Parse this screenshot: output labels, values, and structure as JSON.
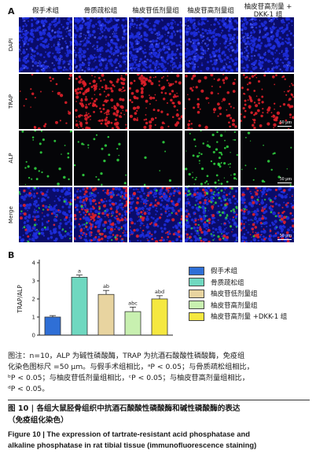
{
  "panel_a_label": "A",
  "panel_b_label": "B",
  "columns": [
    "假手术组",
    "骨质疏松组",
    "柚皮苷低剂量组",
    "柚皮苷高剂量组",
    "柚皮苷高剂量 +\nDKK-1 组"
  ],
  "column_1": "假手术组",
  "column_2": "骨质疏松组",
  "column_3": "柚皮苷低剂量组",
  "column_4": "柚皮苷高剂量组",
  "column_5a": "柚皮苷高剂量 +",
  "column_5b": "DKK-1 组",
  "rows": [
    "DAPI",
    "TRAP",
    "ALP",
    "Merge"
  ],
  "scale_label": "50 μm",
  "colors": {
    "dapi": "#1f2fe0",
    "trap": "#e0202a",
    "alp": "#30d040"
  },
  "chart_data": {
    "type": "bar",
    "categories": [
      "假手术组",
      "骨质疏松组",
      "柚皮苷低剂量组",
      "柚皮苷高剂量组",
      "柚皮苷高剂量 +DKK-1 组"
    ],
    "values": [
      1.0,
      3.2,
      2.25,
      1.3,
      2.0
    ],
    "errors": [
      0.08,
      0.12,
      0.22,
      0.25,
      0.18
    ],
    "significance": [
      "",
      "a",
      "ab",
      "abc",
      "abd"
    ],
    "colors": [
      "#2f6fd6",
      "#6fd8c0",
      "#e8d4a0",
      "#c8f0b0",
      "#f5e840"
    ],
    "ylabel": "TRAP/ALP",
    "ylim": [
      0,
      4
    ],
    "yticks": [
      "0",
      "1",
      "2",
      "3",
      "4"
    ]
  },
  "legend": [
    "假手术组",
    "骨质疏松组",
    "柚皮苷低剂量组",
    "柚皮苷高剂量组",
    "柚皮苷高剂量 +DKK-1 组"
  ],
  "note": {
    "line1": "图注：n=10，ALP 为碱性磷酸酶，TRAP 为抗酒石酸酸性磷酸酶，免疫组",
    "line2": "化染色图标尺 =50 μm。与假手术组相比，ᵃP < 0.05；与骨质疏松组相比，",
    "line3": "ᵇP < 0.05；与柚皮苷低剂量组相比，ᶜP < 0.05；与柚皮苷高剂量组相比，",
    "line4": "ᵈP < 0.05。"
  },
  "caption": {
    "cn_line1": "图 10  |  各组大鼠胫骨组织中抗酒石酸酸性磷酸酶和碱性磷酸酶的表达",
    "cn_line2": "（免疫组化染色）",
    "en_line1": "Figure 10  |  The expression of tartrate-resistant acid phosphatase and",
    "en_line2": "alkaline phosphatase in rat tibial tissue (immunofluorescence staining)"
  }
}
